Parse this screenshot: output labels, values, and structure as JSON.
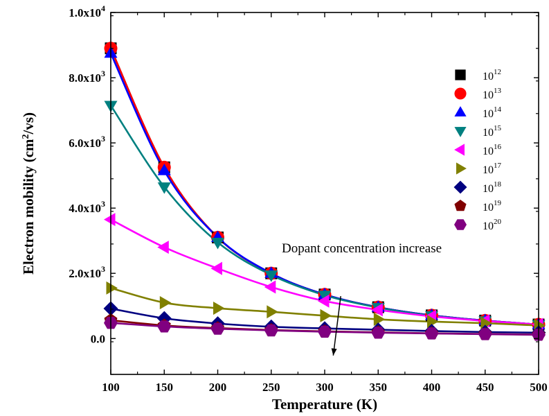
{
  "chart_data": {
    "type": "scatter",
    "xlabel": "Temperature (K)",
    "ylabel": {
      "prefix": "Electron mobility (cm",
      "sup": "2",
      "suffix": "/vs)"
    },
    "xlim": [
      100,
      500
    ],
    "ylim": [
      -1100,
      10000
    ],
    "x_ticks": [
      100,
      150,
      200,
      250,
      300,
      350,
      400,
      450,
      500
    ],
    "x_tick_labels": [
      "100",
      "150",
      "200",
      "250",
      "300",
      "350",
      "400",
      "450",
      "500"
    ],
    "y_ticks": [
      0,
      2000,
      4000,
      6000,
      8000,
      10000
    ],
    "y_tick_labels": [
      {
        "base": "0.0",
        "exp": ""
      },
      {
        "base": "2.0x10",
        "exp": "3"
      },
      {
        "base": "4.0x10",
        "exp": "3"
      },
      {
        "base": "6.0x10",
        "exp": "3"
      },
      {
        "base": "8.0x10",
        "exp": "3"
      },
      {
        "base": "1.0x10",
        "exp": "4"
      }
    ],
    "grid": false,
    "legend_position": "top-right",
    "annotation": {
      "text": "Dopant concentration increase",
      "arrow_from": [
        315,
        1300
      ],
      "arrow_to": [
        308,
        -520
      ]
    },
    "x": [
      100,
      150,
      200,
      250,
      300,
      350,
      400,
      450,
      500
    ],
    "series": [
      {
        "name_base": "10",
        "name_exp": "12",
        "marker": "square",
        "color": "#000000",
        "line_color": "#000000",
        "values": [
          8900,
          5250,
          3100,
          2000,
          1350,
          960,
          710,
          550,
          430
        ]
      },
      {
        "name_base": "10",
        "name_exp": "13",
        "marker": "circle",
        "color": "#ff0000",
        "line_color": "#ff0000",
        "values": [
          8900,
          5250,
          3100,
          2000,
          1350,
          960,
          710,
          550,
          430
        ]
      },
      {
        "name_base": "10",
        "name_exp": "14",
        "marker": "triangle-up",
        "color": "#0000ff",
        "line_color": "#0000ff",
        "values": [
          8750,
          5150,
          3100,
          2000,
          1350,
          960,
          710,
          550,
          430
        ]
      },
      {
        "name_base": "10",
        "name_exp": "15",
        "marker": "triangle-down",
        "color": "#008080",
        "line_color": "#008080",
        "values": [
          7150,
          4650,
          2950,
          1950,
          1330,
          950,
          700,
          540,
          420
        ]
      },
      {
        "name_base": "10",
        "name_exp": "16",
        "marker": "triangle-left",
        "color": "#ff00ff",
        "line_color": "#ff00ff",
        "values": [
          3650,
          2800,
          2150,
          1580,
          1150,
          880,
          680,
          540,
          430
        ]
      },
      {
        "name_base": "10",
        "name_exp": "17",
        "marker": "triangle-right",
        "color": "#808000",
        "line_color": "#808000",
        "values": [
          1550,
          1100,
          930,
          820,
          700,
          590,
          520,
          470,
          400
        ]
      },
      {
        "name_base": "10",
        "name_exp": "18",
        "marker": "diamond",
        "color": "#000080",
        "line_color": "#000080",
        "values": [
          920,
          620,
          460,
          360,
          310,
          270,
          230,
          200,
          180
        ]
      },
      {
        "name_base": "10",
        "name_exp": "19",
        "marker": "pentagon",
        "color": "#800000",
        "line_color": "#800000",
        "values": [
          560,
          400,
          320,
          260,
          220,
          190,
          160,
          140,
          120
        ]
      },
      {
        "name_base": "10",
        "name_exp": "20",
        "marker": "hexagon",
        "color": "#800080",
        "line_color": "#800080",
        "values": [
          480,
          370,
          300,
          250,
          210,
          180,
          155,
          135,
          115
        ]
      }
    ]
  }
}
